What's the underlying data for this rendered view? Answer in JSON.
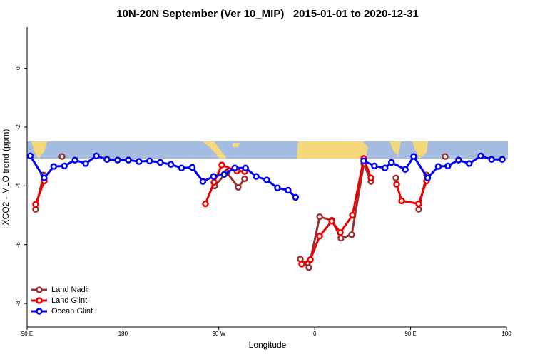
{
  "chart_data": {
    "type": "line",
    "title": "10N-20N September (Ver 10_MIP)   2015-01-01 to 2020-12-31",
    "x_label": "Longitude",
    "y_label": "XCO2 - MLO trend (ppm)",
    "xlim": [
      90,
      540
    ],
    "xticks": [
      {
        "value": 90,
        "label": "90 E"
      },
      {
        "value": 180,
        "label": "180"
      },
      {
        "value": 270,
        "label": "90 W"
      },
      {
        "value": 360,
        "label": "0"
      },
      {
        "value": 450,
        "label": "90 E"
      },
      {
        "value": 540,
        "label": "180"
      }
    ],
    "ylim": [
      -8.8,
      1.4
    ],
    "yticks": [
      0,
      -2,
      -4,
      -6,
      -8
    ],
    "legend": "bottom-left",
    "series": [
      {
        "name": "Land Nadir",
        "color": "#993333",
        "x": [
          98,
          105.4,
          null,
          122.8,
          null,
          266.1,
          277.5,
          288.2,
          294.2,
          null,
          346.5,
          354.5,
          364.6,
          376,
          384.6,
          394.7,
          406.1,
          412.8,
          null,
          436.2,
          null,
          457.6,
          465,
          null,
          482.4
        ],
        "values": [
          -4.8,
          -3.63,
          null,
          -3.0,
          null,
          -4.0,
          -3.54,
          -4.05,
          -3.76,
          null,
          -6.49,
          -6.78,
          -5.05,
          -5.17,
          -5.78,
          -5.66,
          -3.24,
          -3.85,
          null,
          -3.73,
          null,
          -4.8,
          -3.63,
          null,
          -3.0
        ]
      },
      {
        "name": "Land Glint",
        "color": "#ee0000",
        "x": [
          98,
          106.1,
          null,
          257.4,
          265.5,
          272.8,
          286.9,
          294.2,
          null,
          347.8,
          355.9,
          364.6,
          376,
          384,
          395.4,
          406.1,
          412.8,
          null,
          436.9,
          441.6,
          457.6,
          465
        ],
        "values": [
          -4.63,
          -3.83,
          null,
          -4.61,
          -3.88,
          -3.29,
          -3.49,
          -3.51,
          null,
          -6.66,
          -6.51,
          -5.71,
          -5.2,
          -5.59,
          -5.0,
          -3.07,
          -3.73,
          null,
          -3.95,
          -4.51,
          -4.61,
          -3.83
        ]
      },
      {
        "name": "Ocean Glint",
        "color": "#0000ee",
        "x": [
          93,
          106,
          115,
          125,
          135,
          145,
          155,
          165,
          175,
          185,
          195,
          205,
          215,
          225,
          235,
          245,
          255,
          265,
          275,
          285,
          295,
          305,
          315,
          325,
          335,
          342,
          null,
          406,
          416,
          426,
          432,
          445,
          453,
          466,
          476,
          485,
          495,
          505,
          516,
          526,
          536
        ],
        "values": [
          -2.98,
          -3.73,
          -3.34,
          -3.32,
          -3.12,
          -3.24,
          -2.98,
          -3.1,
          -3.12,
          -3.12,
          -3.17,
          -3.15,
          -3.2,
          -3.27,
          -3.39,
          -3.37,
          -3.85,
          -3.68,
          -3.61,
          -3.39,
          -3.39,
          -3.68,
          -3.8,
          -4.07,
          -4.15,
          -4.39,
          null,
          -3.15,
          -3.32,
          -3.39,
          -3.2,
          -3.44,
          -3.0,
          -3.73,
          -3.34,
          -3.32,
          -3.12,
          -3.24,
          -2.98,
          -3.1,
          -3.1
        ]
      }
    ]
  }
}
